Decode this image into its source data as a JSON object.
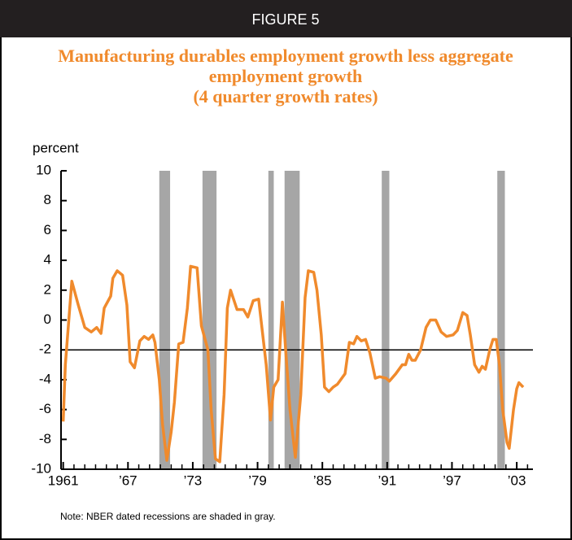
{
  "chart_data": {
    "type": "line",
    "figure_label": "FIGURE 5",
    "title": [
      "Manufacturing durables employment growth less aggregate",
      "employment growth",
      "(4 quarter growth rates)"
    ],
    "ylabel": "percent",
    "note": "Note: NBER dated recessions are shaded in gray.",
    "color": "#f08a2c",
    "reference_line": -2,
    "recession_color": "#a6a6a6",
    "recessions": [
      [
        1969.9,
        1970.9
      ],
      [
        1973.9,
        1975.2
      ],
      [
        1980.0,
        1980.5
      ],
      [
        1981.5,
        1982.9
      ],
      [
        1990.5,
        1991.2
      ],
      [
        2001.2,
        2001.9
      ]
    ],
    "x": [
      1961.0,
      1961.2,
      1961.8,
      1962.4,
      1963.0,
      1963.6,
      1964.1,
      1964.5,
      1964.8,
      1965.4,
      1965.6,
      1966.0,
      1966.5,
      1966.9,
      1967.2,
      1967.6,
      1968.1,
      1968.5,
      1968.9,
      1969.3,
      1969.5,
      1969.9,
      1970.2,
      1970.6,
      1971.0,
      1971.3,
      1971.7,
      1972.1,
      1972.5,
      1972.8,
      1973.4,
      1973.8,
      1974.4,
      1974.7,
      1975.1,
      1975.5,
      1975.9,
      1976.2,
      1976.5,
      1977.1,
      1977.7,
      1978.1,
      1978.6,
      1979.1,
      1979.4,
      1979.8,
      1980.2,
      1980.5,
      1980.9,
      1981.3,
      1981.6,
      1982.0,
      1982.5,
      1983.0,
      1983.4,
      1983.7,
      1984.2,
      1984.5,
      1984.9,
      1985.2,
      1985.6,
      1986.0,
      1986.4,
      1986.7,
      1987.1,
      1987.5,
      1987.9,
      1988.2,
      1988.6,
      1989.0,
      1989.4,
      1989.9,
      1990.3,
      1990.9,
      1991.2,
      1991.8,
      1992.4,
      1992.7,
      1993.0,
      1993.3,
      1993.6,
      1994.1,
      1994.6,
      1995.0,
      1995.5,
      1996.0,
      1996.5,
      1997.1,
      1997.5,
      1998.0,
      1998.4,
      1998.7,
      1999.1,
      1999.5,
      1999.8,
      2000.1,
      2000.5,
      2000.8,
      2001.1,
      2001.4,
      2001.7,
      2002.1,
      2002.3,
      2002.7,
      2003.0,
      2003.2,
      2003.6
    ],
    "values": [
      -6.8,
      -3,
      2.6,
      1.0,
      -0.5,
      -0.8,
      -0.5,
      -0.9,
      0.8,
      1.6,
      2.8,
      3.3,
      3.0,
      1.0,
      -2.8,
      -3.2,
      -1.4,
      -1.1,
      -1.3,
      -1.0,
      -1.5,
      -4,
      -7,
      -9.4,
      -7.5,
      -5.5,
      -1.6,
      -1.5,
      0.8,
      3.6,
      3.5,
      -0.4,
      -2.0,
      -6,
      -9.3,
      -9.5,
      -5,
      0.8,
      2.0,
      0.7,
      0.7,
      0.2,
      1.3,
      1.4,
      -0.5,
      -3,
      -6.7,
      -4.5,
      -4.0,
      1.2,
      -2,
      -6,
      -9.2,
      -5,
      1.5,
      3.3,
      3.2,
      2.0,
      -1,
      -4.5,
      -4.8,
      -4.5,
      -4.3,
      -4.0,
      -3.6,
      -1.5,
      -1.6,
      -1.1,
      -1.4,
      -1.3,
      -2.2,
      -3.9,
      -3.8,
      -3.9,
      -4.1,
      -3.6,
      -3.0,
      -3.0,
      -2.3,
      -2.7,
      -2.7,
      -2.0,
      -0.5,
      0,
      0,
      -0.8,
      -1.1,
      -1.0,
      -0.7,
      0.5,
      0.3,
      -1.0,
      -3,
      -3.5,
      -3.1,
      -3.3,
      -2.0,
      -1.3,
      -1.3,
      -3,
      -6,
      -8.2,
      -8.6,
      -6,
      -4.6,
      -4.2,
      -4.5
    ],
    "xlim": [
      1960.8,
      2004.5
    ],
    "xticks": [
      {
        "value": 1961,
        "label": "1961"
      },
      {
        "value": 1967,
        "label": "’67"
      },
      {
        "value": 1973,
        "label": "’73"
      },
      {
        "value": 1979,
        "label": "’79"
      },
      {
        "value": 1985,
        "label": "’85"
      },
      {
        "value": 1991,
        "label": "’91"
      },
      {
        "value": 1997,
        "label": "’97"
      },
      {
        "value": 2003,
        "label": "’03"
      }
    ],
    "x_minor_ticks": [
      1962,
      1963,
      1964,
      1965,
      1966,
      1968,
      1969,
      1970,
      1971,
      1972,
      1974,
      1975,
      1976,
      1977,
      1978,
      1980,
      1981,
      1982,
      1983,
      1984,
      1986,
      1987,
      1988,
      1989,
      1990,
      1992,
      1993,
      1994,
      1995,
      1996,
      1998,
      1999,
      2000,
      2001,
      2002,
      2004
    ],
    "ylim": [
      -10,
      10
    ],
    "yticks": [
      -10,
      -8,
      -6,
      -4,
      -2,
      0,
      2,
      4,
      6,
      8,
      10
    ]
  }
}
